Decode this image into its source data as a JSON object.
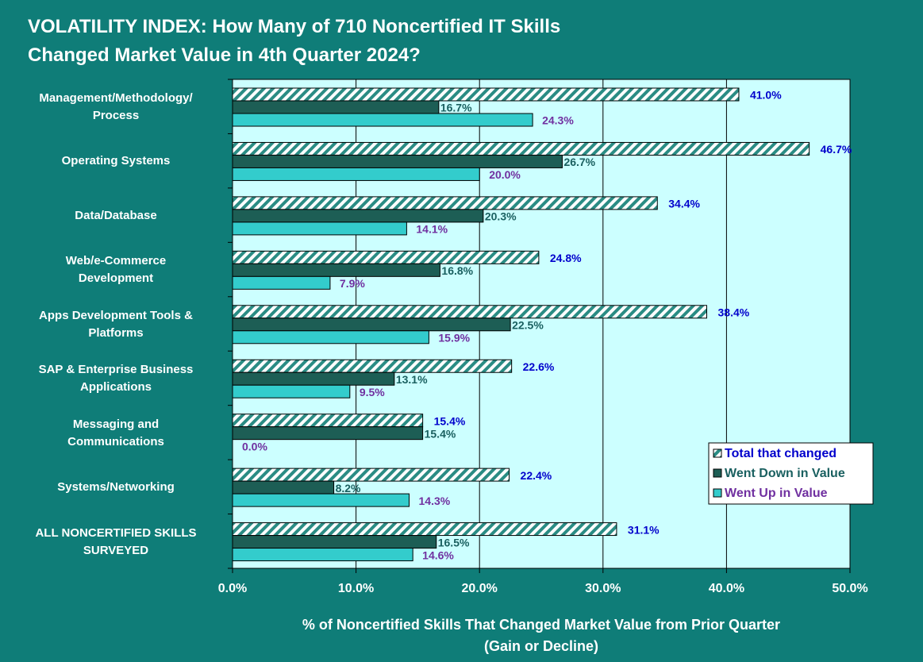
{
  "chart_data": {
    "type": "barh",
    "title": "VOLATILITY INDEX: How Many of 710 Noncertified IT Skills\nChanged Market Value in 4th Quarter 2024?",
    "x_label": "% of Noncertified Skills That Changed Market Value from Prior Quarter\n(Gain or Decline)",
    "categories": [
      "Management/Methodology/\nProcess",
      "Operating Systems",
      "Data/Database",
      "Web/e-Commerce\nDevelopment",
      "Apps Development Tools &\nPlatforms",
      "SAP & Enterprise Business\nApplications",
      "Messaging and\nCommunications",
      "Systems/Networking",
      "ALL NONCERTIFIED SKILLS\nSURVEYED"
    ],
    "series": [
      {
        "name": "Total that changed",
        "color": "#2a8c84",
        "pattern": "hatch",
        "label_color": "#0000cc",
        "values": [
          41.0,
          46.7,
          34.4,
          24.8,
          38.4,
          22.6,
          15.4,
          22.4,
          31.1
        ],
        "value_labels": [
          "41.0%",
          "46.7%",
          "34.4%",
          "24.8%",
          "38.4%",
          "22.6%",
          "15.4%",
          "22.4%",
          "31.1%"
        ]
      },
      {
        "name": "Went Down in Value",
        "color": "#1d5e55",
        "label_color": "#1a6060",
        "values": [
          16.7,
          26.7,
          20.3,
          16.8,
          22.5,
          13.1,
          15.4,
          8.2,
          16.5
        ],
        "value_labels": [
          "16.7%",
          "26.7%",
          "20.3%",
          "16.8%",
          "22.5%",
          "13.1%",
          "15.4%",
          "8.2%",
          "16.5%"
        ]
      },
      {
        "name": "Went Up in Value",
        "color": "#33cccc",
        "label_color": "#7030a0",
        "values": [
          24.3,
          20.0,
          14.1,
          7.9,
          15.9,
          9.5,
          0.0,
          14.3,
          14.6
        ],
        "value_labels": [
          "24.3%",
          "20.0%",
          "14.1%",
          "7.9%",
          "15.9%",
          "9.5%",
          "0.0%",
          "14.3%",
          "14.6%"
        ]
      }
    ],
    "xlim": [
      0,
      50
    ],
    "xticks": [
      {
        "value": 0,
        "label": "0.0%"
      },
      {
        "value": 10,
        "label": "10.0%"
      },
      {
        "value": 20,
        "label": "20.0%"
      },
      {
        "value": 30,
        "label": "30.0%"
      },
      {
        "value": 40,
        "label": "40.0%"
      },
      {
        "value": 50,
        "label": "50.0%"
      }
    ],
    "grid": true,
    "legend": "lower right"
  }
}
